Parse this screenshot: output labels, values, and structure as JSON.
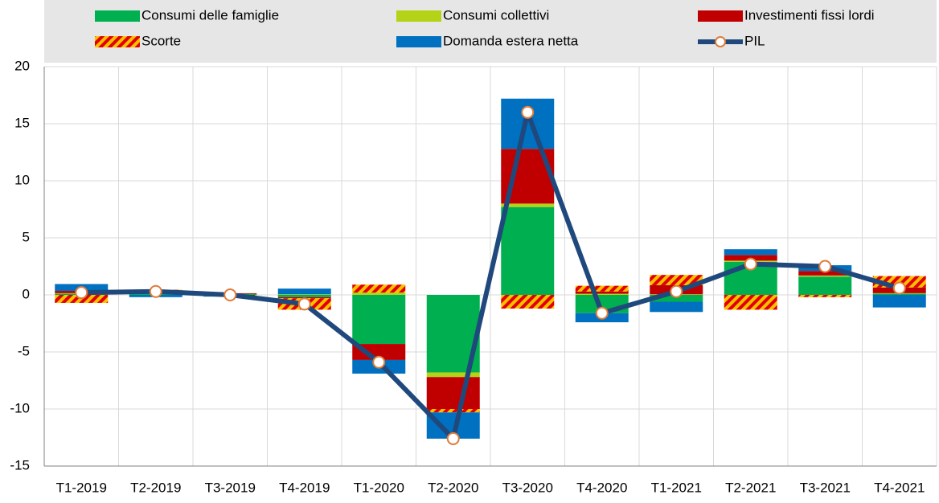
{
  "chart_data": {
    "type": "stacked_bar_line",
    "categories": [
      "T1-2019",
      "T2-2019",
      "T3-2019",
      "T4-2019",
      "T1-2020",
      "T2-2020",
      "T3-2020",
      "T4-2020",
      "T1-2021",
      "T2-2021",
      "T3-2021",
      "T4-2021"
    ],
    "series": [
      {
        "name": "Consumi delle famiglie",
        "color": "#00b050",
        "values": [
          0.1,
          0.1,
          0.1,
          -0.2,
          -4.3,
          -6.8,
          7.7,
          -1.6,
          -0.6,
          2.9,
          1.6,
          0.1
        ]
      },
      {
        "name": "Consumi collettivi",
        "color": "#b4d317",
        "values": [
          0.05,
          0.05,
          0,
          0.05,
          0.2,
          -0.4,
          0.3,
          0.1,
          0.05,
          0.1,
          0.1,
          0.05
        ]
      },
      {
        "name": "Investimenti fissi lordi",
        "color": "#c00000",
        "values": [
          0.2,
          0.1,
          0.05,
          -0.1,
          -1.4,
          -2.8,
          4.8,
          0.2,
          0.8,
          0.5,
          0.4,
          0.5
        ]
      },
      {
        "name": "Scorte",
        "color": "#ffc000",
        "hatch_color": "#e00000",
        "values": [
          -0.7,
          0.2,
          -0.1,
          -1.0,
          0.7,
          -0.3,
          -1.2,
          0.5,
          0.9,
          -1.3,
          -0.2,
          1.0
        ]
      },
      {
        "name": "Domanda estera netta",
        "color": "#0070c0",
        "values": [
          0.6,
          -0.2,
          -0.05,
          0.5,
          -1.2,
          -2.3,
          4.4,
          -0.8,
          -0.9,
          0.5,
          0.5,
          -1.1
        ]
      },
      {
        "name": "PIL",
        "type": "line",
        "color": "#1f497d",
        "marker_edge": "#e07b39",
        "values": [
          0.2,
          0.3,
          0,
          -0.8,
          -5.9,
          -12.6,
          16.0,
          -1.6,
          0.3,
          2.7,
          2.5,
          0.6
        ]
      }
    ],
    "ylim": [
      -15,
      20
    ],
    "yticks": [
      -15,
      -10,
      -5,
      0,
      5,
      10,
      15,
      20
    ],
    "grid": true
  }
}
